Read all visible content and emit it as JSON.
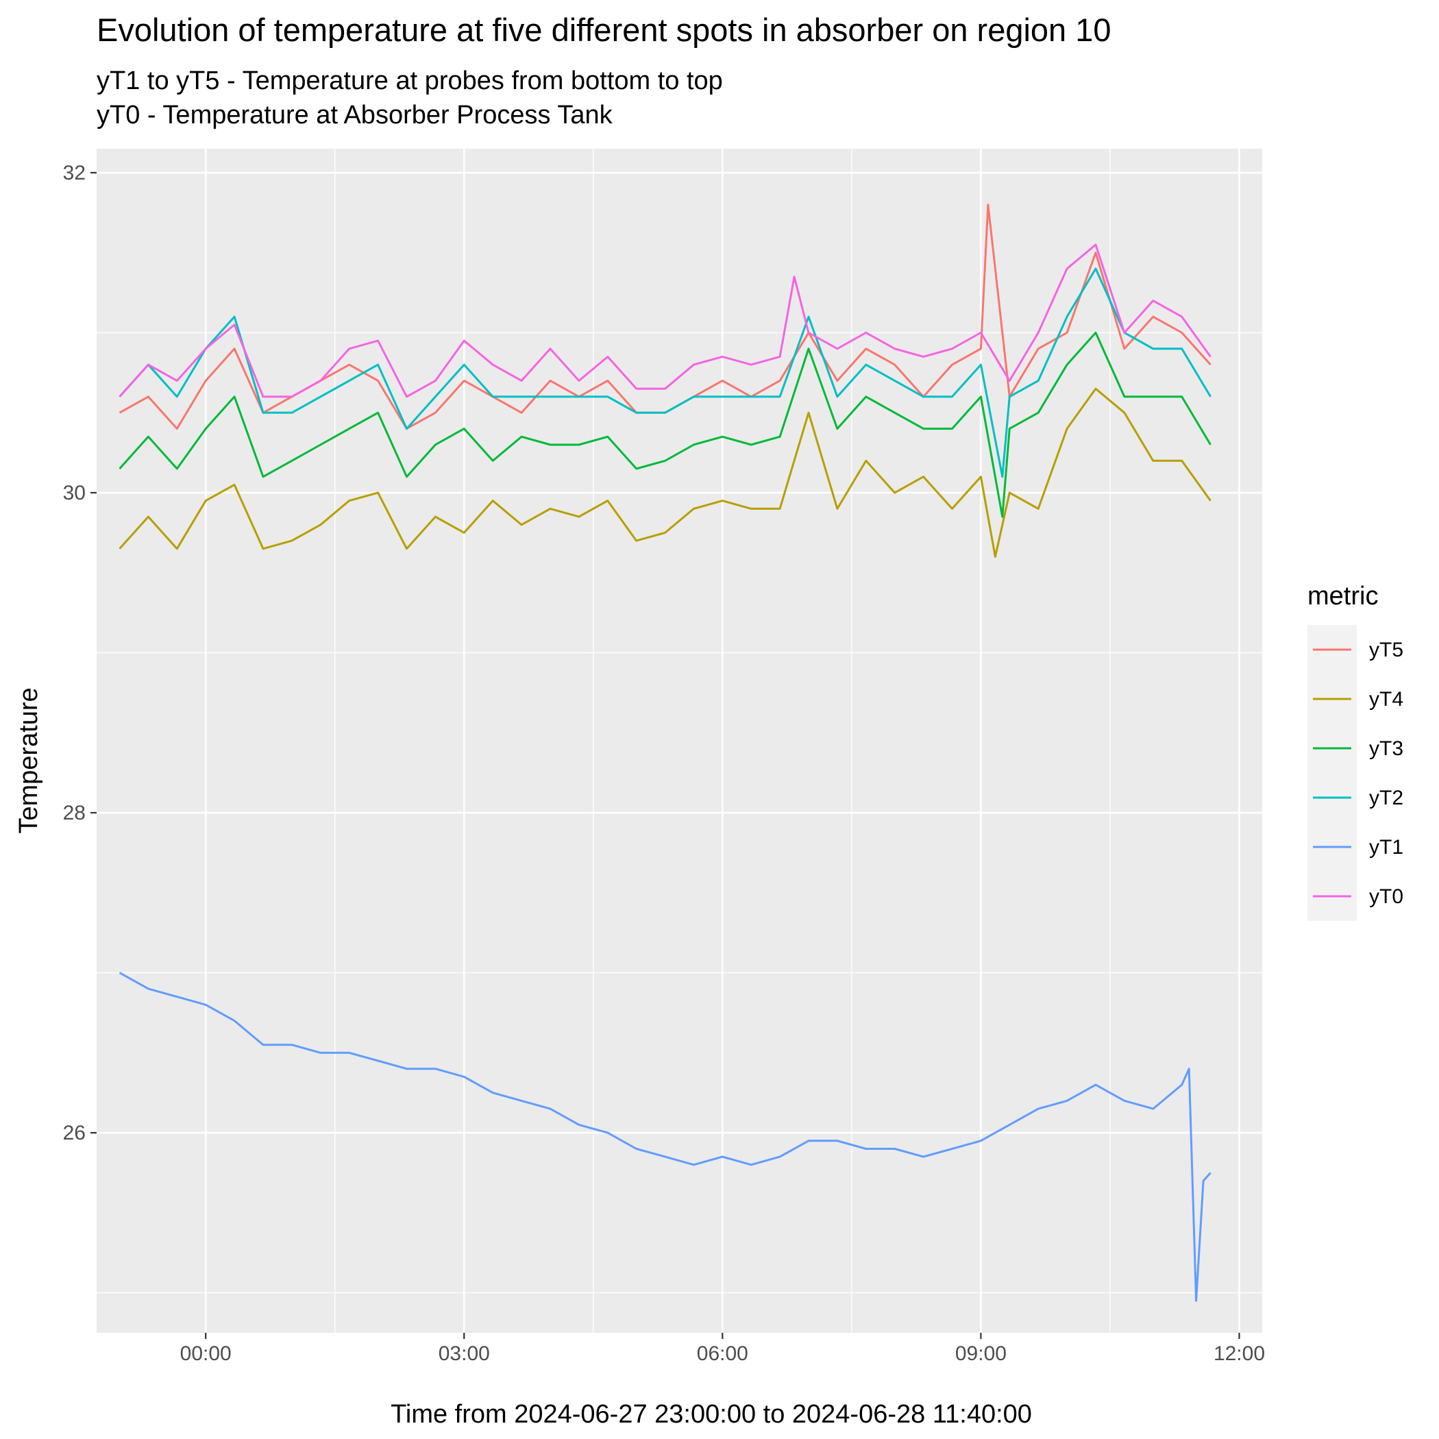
{
  "chart_data": {
    "type": "line",
    "title": "Evolution of temperature at five different spots in absorber on region 10",
    "subtitle_lines": [
      "yT1 to yT5 - Temperature at probes from bottom to top",
      "yT0 - Temperature at Absorber Process Tank"
    ],
    "xlabel": "Time from 2024-06-27 23:00:00 to 2024-06-28 11:40:00",
    "ylabel": "Temperature",
    "x_ticks": [
      "00:00",
      "03:00",
      "06:00",
      "09:00",
      "12:00"
    ],
    "y_ticks": [
      "26",
      "28",
      "30",
      "32"
    ],
    "xlim": [
      "2024-06-27 22:44",
      "2024-06-28 12:16"
    ],
    "ylim": [
      24.75,
      32.15
    ],
    "grid": true,
    "legend": {
      "title": "metric",
      "position": "right"
    },
    "series": [
      {
        "name": "yT5",
        "color": "#F8766D",
        "x": [
          "2024-06-27 23:00",
          "2024-06-27 23:20",
          "2024-06-27 23:40",
          "2024-06-28 00:00",
          "2024-06-28 00:20",
          "2024-06-28 00:40",
          "2024-06-28 01:00",
          "2024-06-28 01:20",
          "2024-06-28 01:40",
          "2024-06-28 02:00",
          "2024-06-28 02:20",
          "2024-06-28 02:40",
          "2024-06-28 03:00",
          "2024-06-28 03:20",
          "2024-06-28 03:40",
          "2024-06-28 04:00",
          "2024-06-28 04:20",
          "2024-06-28 04:40",
          "2024-06-28 05:00",
          "2024-06-28 05:20",
          "2024-06-28 05:40",
          "2024-06-28 06:00",
          "2024-06-28 06:20",
          "2024-06-28 06:40",
          "2024-06-28 07:00",
          "2024-06-28 07:20",
          "2024-06-28 07:40",
          "2024-06-28 08:00",
          "2024-06-28 08:20",
          "2024-06-28 08:40",
          "2024-06-28 09:00",
          "2024-06-28 09:05",
          "2024-06-28 09:20",
          "2024-06-28 09:40",
          "2024-06-28 10:00",
          "2024-06-28 10:20",
          "2024-06-28 10:40",
          "2024-06-28 11:00",
          "2024-06-28 11:20",
          "2024-06-28 11:40"
        ],
        "y": [
          30.5,
          30.6,
          30.4,
          30.7,
          30.9,
          30.5,
          30.6,
          30.7,
          30.8,
          30.7,
          30.4,
          30.5,
          30.7,
          30.6,
          30.5,
          30.7,
          30.6,
          30.7,
          30.5,
          30.5,
          30.6,
          30.7,
          30.6,
          30.7,
          31.0,
          30.7,
          30.9,
          30.8,
          30.6,
          30.8,
          30.9,
          31.8,
          30.6,
          30.9,
          31.0,
          31.5,
          30.9,
          31.1,
          31.0,
          30.8
        ]
      },
      {
        "name": "yT4",
        "color": "#B79F00",
        "x": [
          "2024-06-27 23:00",
          "2024-06-27 23:20",
          "2024-06-27 23:40",
          "2024-06-28 00:00",
          "2024-06-28 00:20",
          "2024-06-28 00:40",
          "2024-06-28 01:00",
          "2024-06-28 01:20",
          "2024-06-28 01:40",
          "2024-06-28 02:00",
          "2024-06-28 02:20",
          "2024-06-28 02:40",
          "2024-06-28 03:00",
          "2024-06-28 03:20",
          "2024-06-28 03:40",
          "2024-06-28 04:00",
          "2024-06-28 04:20",
          "2024-06-28 04:40",
          "2024-06-28 05:00",
          "2024-06-28 05:20",
          "2024-06-28 05:40",
          "2024-06-28 06:00",
          "2024-06-28 06:20",
          "2024-06-28 06:40",
          "2024-06-28 07:00",
          "2024-06-28 07:20",
          "2024-06-28 07:40",
          "2024-06-28 08:00",
          "2024-06-28 08:20",
          "2024-06-28 08:40",
          "2024-06-28 09:00",
          "2024-06-28 09:10",
          "2024-06-28 09:20",
          "2024-06-28 09:40",
          "2024-06-28 10:00",
          "2024-06-28 10:20",
          "2024-06-28 10:40",
          "2024-06-28 11:00",
          "2024-06-28 11:20",
          "2024-06-28 11:40"
        ],
        "y": [
          29.65,
          29.85,
          29.65,
          29.95,
          30.05,
          29.65,
          29.7,
          29.8,
          29.95,
          30.0,
          29.65,
          29.85,
          29.75,
          29.95,
          29.8,
          29.9,
          29.85,
          29.95,
          29.7,
          29.75,
          29.9,
          29.95,
          29.9,
          29.9,
          30.5,
          29.9,
          30.2,
          30.0,
          30.1,
          29.9,
          30.1,
          29.6,
          30.0,
          29.9,
          30.4,
          30.65,
          30.5,
          30.2,
          30.2,
          29.95
        ]
      },
      {
        "name": "yT3",
        "color": "#00BA38",
        "x": [
          "2024-06-27 23:00",
          "2024-06-27 23:20",
          "2024-06-27 23:40",
          "2024-06-28 00:00",
          "2024-06-28 00:20",
          "2024-06-28 00:40",
          "2024-06-28 01:00",
          "2024-06-28 01:20",
          "2024-06-28 01:40",
          "2024-06-28 02:00",
          "2024-06-28 02:20",
          "2024-06-28 02:40",
          "2024-06-28 03:00",
          "2024-06-28 03:20",
          "2024-06-28 03:40",
          "2024-06-28 04:00",
          "2024-06-28 04:20",
          "2024-06-28 04:40",
          "2024-06-28 05:00",
          "2024-06-28 05:20",
          "2024-06-28 05:40",
          "2024-06-28 06:00",
          "2024-06-28 06:20",
          "2024-06-28 06:40",
          "2024-06-28 07:00",
          "2024-06-28 07:20",
          "2024-06-28 07:40",
          "2024-06-28 08:00",
          "2024-06-28 08:20",
          "2024-06-28 08:40",
          "2024-06-28 09:00",
          "2024-06-28 09:15",
          "2024-06-28 09:20",
          "2024-06-28 09:40",
          "2024-06-28 10:00",
          "2024-06-28 10:20",
          "2024-06-28 10:40",
          "2024-06-28 11:00",
          "2024-06-28 11:20",
          "2024-06-28 11:40"
        ],
        "y": [
          30.15,
          30.35,
          30.15,
          30.4,
          30.6,
          30.1,
          30.2,
          30.3,
          30.4,
          30.5,
          30.1,
          30.3,
          30.4,
          30.2,
          30.35,
          30.3,
          30.3,
          30.35,
          30.15,
          30.2,
          30.3,
          30.35,
          30.3,
          30.35,
          30.9,
          30.4,
          30.6,
          30.5,
          30.4,
          30.4,
          30.6,
          29.85,
          30.4,
          30.5,
          30.8,
          31.0,
          30.6,
          30.6,
          30.6,
          30.3
        ]
      },
      {
        "name": "yT2",
        "color": "#00BFC4",
        "x": [
          "2024-06-27 23:00",
          "2024-06-27 23:20",
          "2024-06-27 23:40",
          "2024-06-28 00:00",
          "2024-06-28 00:20",
          "2024-06-28 00:40",
          "2024-06-28 01:00",
          "2024-06-28 01:20",
          "2024-06-28 01:40",
          "2024-06-28 02:00",
          "2024-06-28 02:20",
          "2024-06-28 02:40",
          "2024-06-28 03:00",
          "2024-06-28 03:20",
          "2024-06-28 03:40",
          "2024-06-28 04:00",
          "2024-06-28 04:20",
          "2024-06-28 04:40",
          "2024-06-28 05:00",
          "2024-06-28 05:20",
          "2024-06-28 05:40",
          "2024-06-28 06:00",
          "2024-06-28 06:20",
          "2024-06-28 06:40",
          "2024-06-28 07:00",
          "2024-06-28 07:20",
          "2024-06-28 07:40",
          "2024-06-28 08:00",
          "2024-06-28 08:20",
          "2024-06-28 08:40",
          "2024-06-28 09:00",
          "2024-06-28 09:15",
          "2024-06-28 09:20",
          "2024-06-28 09:40",
          "2024-06-28 10:00",
          "2024-06-28 10:20",
          "2024-06-28 10:40",
          "2024-06-28 11:00",
          "2024-06-28 11:20",
          "2024-06-28 11:40"
        ],
        "y": [
          30.6,
          30.8,
          30.6,
          30.9,
          31.1,
          30.5,
          30.5,
          30.6,
          30.7,
          30.8,
          30.4,
          30.6,
          30.8,
          30.6,
          30.6,
          30.6,
          30.6,
          30.6,
          30.5,
          30.5,
          30.6,
          30.6,
          30.6,
          30.6,
          31.1,
          30.6,
          30.8,
          30.7,
          30.6,
          30.6,
          30.8,
          30.1,
          30.6,
          30.7,
          31.1,
          31.4,
          31.0,
          30.9,
          30.9,
          30.6
        ]
      },
      {
        "name": "yT1",
        "color": "#619CFF",
        "x": [
          "2024-06-27 23:00",
          "2024-06-27 23:20",
          "2024-06-27 23:40",
          "2024-06-28 00:00",
          "2024-06-28 00:20",
          "2024-06-28 00:40",
          "2024-06-28 01:00",
          "2024-06-28 01:20",
          "2024-06-28 01:40",
          "2024-06-28 02:00",
          "2024-06-28 02:20",
          "2024-06-28 02:40",
          "2024-06-28 03:00",
          "2024-06-28 03:20",
          "2024-06-28 03:40",
          "2024-06-28 04:00",
          "2024-06-28 04:20",
          "2024-06-28 04:40",
          "2024-06-28 05:00",
          "2024-06-28 05:20",
          "2024-06-28 05:40",
          "2024-06-28 06:00",
          "2024-06-28 06:20",
          "2024-06-28 06:40",
          "2024-06-28 07:00",
          "2024-06-28 07:20",
          "2024-06-28 07:40",
          "2024-06-28 08:00",
          "2024-06-28 08:20",
          "2024-06-28 08:40",
          "2024-06-28 09:00",
          "2024-06-28 09:20",
          "2024-06-28 09:40",
          "2024-06-28 10:00",
          "2024-06-28 10:20",
          "2024-06-28 10:40",
          "2024-06-28 11:00",
          "2024-06-28 11:20",
          "2024-06-28 11:25",
          "2024-06-28 11:30",
          "2024-06-28 11:35",
          "2024-06-28 11:40"
        ],
        "y": [
          27.0,
          26.9,
          26.85,
          26.8,
          26.7,
          26.55,
          26.55,
          26.5,
          26.5,
          26.45,
          26.4,
          26.4,
          26.35,
          26.25,
          26.2,
          26.15,
          26.05,
          26.0,
          25.9,
          25.85,
          25.8,
          25.85,
          25.8,
          25.85,
          25.95,
          25.95,
          25.9,
          25.9,
          25.85,
          25.9,
          25.95,
          26.05,
          26.15,
          26.2,
          26.3,
          26.2,
          26.15,
          26.3,
          26.4,
          24.95,
          25.7,
          25.75
        ]
      },
      {
        "name": "yT0",
        "color": "#F564E3",
        "x": [
          "2024-06-27 23:00",
          "2024-06-27 23:20",
          "2024-06-27 23:40",
          "2024-06-28 00:00",
          "2024-06-28 00:20",
          "2024-06-28 00:40",
          "2024-06-28 01:00",
          "2024-06-28 01:20",
          "2024-06-28 01:40",
          "2024-06-28 02:00",
          "2024-06-28 02:20",
          "2024-06-28 02:40",
          "2024-06-28 03:00",
          "2024-06-28 03:20",
          "2024-06-28 03:40",
          "2024-06-28 04:00",
          "2024-06-28 04:20",
          "2024-06-28 04:40",
          "2024-06-28 05:00",
          "2024-06-28 05:20",
          "2024-06-28 05:40",
          "2024-06-28 06:00",
          "2024-06-28 06:20",
          "2024-06-28 06:40",
          "2024-06-28 06:50",
          "2024-06-28 07:00",
          "2024-06-28 07:20",
          "2024-06-28 07:40",
          "2024-06-28 08:00",
          "2024-06-28 08:20",
          "2024-06-28 08:40",
          "2024-06-28 09:00",
          "2024-06-28 09:20",
          "2024-06-28 09:40",
          "2024-06-28 10:00",
          "2024-06-28 10:20",
          "2024-06-28 10:40",
          "2024-06-28 11:00",
          "2024-06-28 11:20",
          "2024-06-28 11:40"
        ],
        "y": [
          30.6,
          30.8,
          30.7,
          30.9,
          31.05,
          30.6,
          30.6,
          30.7,
          30.9,
          30.95,
          30.6,
          30.7,
          30.95,
          30.8,
          30.7,
          30.9,
          30.7,
          30.85,
          30.65,
          30.65,
          30.8,
          30.85,
          30.8,
          30.85,
          31.35,
          31.0,
          30.9,
          31.0,
          30.9,
          30.85,
          30.9,
          31.0,
          30.7,
          31.0,
          31.4,
          31.55,
          31.0,
          31.2,
          31.1,
          30.85
        ]
      }
    ]
  }
}
